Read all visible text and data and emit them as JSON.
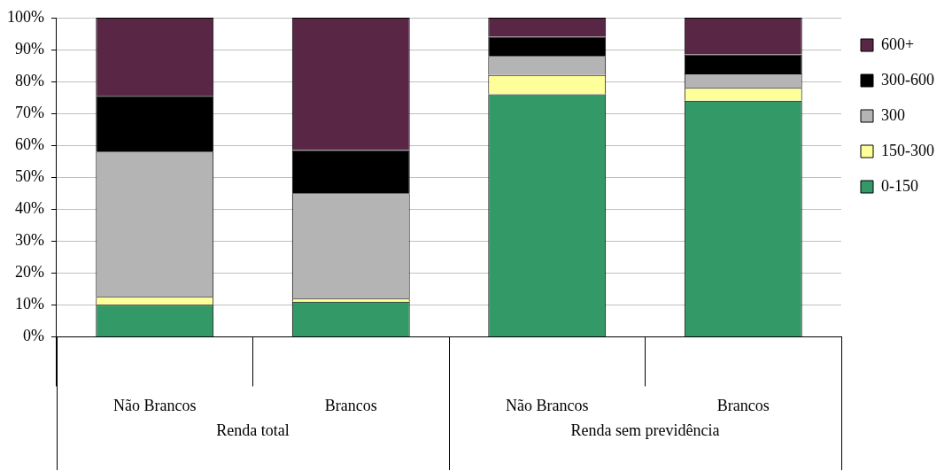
{
  "chart_data": {
    "type": "bar",
    "stacked": true,
    "categories": [
      "Não Brancos",
      "Brancos",
      "Não Brancos",
      "Brancos"
    ],
    "series": [
      {
        "name": "0-150",
        "color": "#339966",
        "values": [
          10,
          11,
          76,
          74
        ]
      },
      {
        "name": "150-300",
        "color": "#ffff99",
        "values": [
          2.5,
          1,
          6,
          4
        ]
      },
      {
        "name": "300",
        "color": "#b4b4b4",
        "values": [
          45.5,
          33,
          6,
          4.5
        ]
      },
      {
        "name": "300-600",
        "color": "#000000",
        "values": [
          17.5,
          13.5,
          6,
          6
        ]
      },
      {
        "name": "600+",
        "color": "#5a2646",
        "values": [
          24.5,
          41.5,
          6,
          11.5
        ]
      }
    ],
    "ylim": [
      0,
      100
    ],
    "yticks": [
      {
        "value": 0,
        "label": "0%"
      },
      {
        "value": 10,
        "label": "10%"
      },
      {
        "value": 20,
        "label": "20%"
      },
      {
        "value": 30,
        "label": "30%"
      },
      {
        "value": 40,
        "label": "40%"
      },
      {
        "value": 50,
        "label": "50%"
      },
      {
        "value": 60,
        "label": "60%"
      },
      {
        "value": 70,
        "label": "70%"
      },
      {
        "value": 80,
        "label": "80%"
      },
      {
        "value": 90,
        "label": "90%"
      },
      {
        "value": 100,
        "label": "100%"
      }
    ],
    "grid": "y",
    "legend": "right",
    "annotations": [
      "Renda total",
      "Renda sem previdência"
    ]
  }
}
